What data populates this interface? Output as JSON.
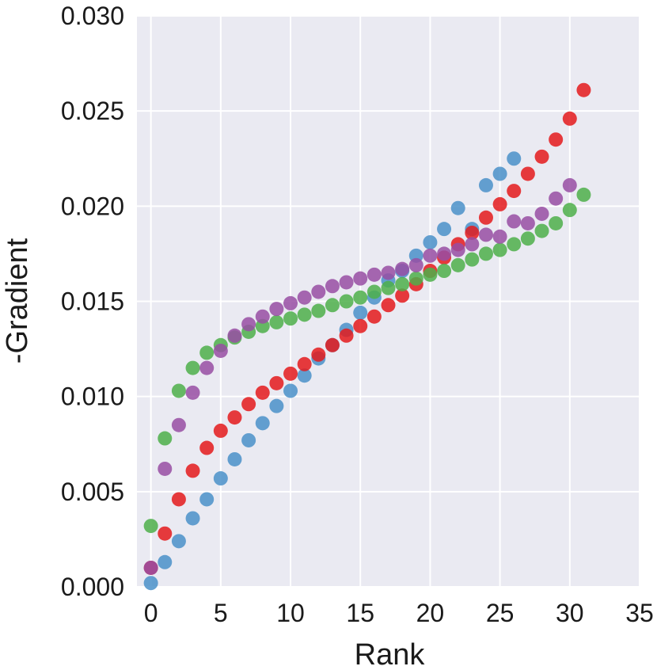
{
  "chart_data": {
    "type": "scatter",
    "title": "",
    "xlabel": "Rank",
    "ylabel": "-Gradient",
    "xlim": [
      -1,
      35
    ],
    "ylim": [
      0,
      0.03
    ],
    "xticks": [
      "0",
      "5",
      "10",
      "15",
      "20",
      "25",
      "30",
      "35"
    ],
    "yticks": [
      "0.000",
      "0.005",
      "0.010",
      "0.015",
      "0.020",
      "0.025",
      "0.030"
    ],
    "grid": true,
    "legend": "none",
    "background": "#eaeaf2",
    "series": [
      {
        "color": "#4a90c9",
        "x": [
          0,
          1,
          2,
          3,
          4,
          5,
          6,
          7,
          8,
          9,
          10,
          11,
          12,
          13,
          14,
          15,
          16,
          17,
          18,
          19,
          20,
          21,
          22,
          23,
          24,
          25,
          26
        ],
        "y": [
          0.0002,
          0.0013,
          0.0024,
          0.0036,
          0.0046,
          0.0057,
          0.0067,
          0.0077,
          0.0086,
          0.0095,
          0.0103,
          0.0111,
          0.012,
          0.0127,
          0.0135,
          0.0144,
          0.0152,
          0.0161,
          0.0166,
          0.0174,
          0.0181,
          0.0188,
          0.0199,
          0.0188,
          0.0211,
          0.0217,
          0.0225
        ]
      },
      {
        "color": "#e41a1c",
        "x": [
          0,
          1,
          2,
          3,
          4,
          5,
          6,
          7,
          8,
          9,
          10,
          11,
          12,
          13,
          14,
          15,
          16,
          17,
          18,
          19,
          20,
          21,
          22,
          23,
          24,
          25,
          26,
          27,
          28,
          29,
          30,
          31
        ],
        "y": [
          0.001,
          0.0028,
          0.0046,
          0.0061,
          0.0073,
          0.0082,
          0.0089,
          0.0096,
          0.0102,
          0.0107,
          0.0112,
          0.0117,
          0.0122,
          0.0127,
          0.0132,
          0.0137,
          0.0142,
          0.0148,
          0.0153,
          0.0159,
          0.0166,
          0.0173,
          0.018,
          0.0186,
          0.0194,
          0.0201,
          0.0208,
          0.0217,
          0.0226,
          0.0235,
          0.0246,
          0.0261
        ]
      },
      {
        "color": "#4daf4a",
        "x": [
          0,
          1,
          2,
          3,
          4,
          5,
          6,
          7,
          8,
          9,
          10,
          11,
          12,
          13,
          14,
          15,
          16,
          17,
          18,
          19,
          20,
          21,
          22,
          23,
          24,
          25,
          26,
          27,
          28,
          29,
          30,
          31
        ],
        "y": [
          0.0032,
          0.0078,
          0.0103,
          0.0115,
          0.0123,
          0.0127,
          0.0131,
          0.0134,
          0.0137,
          0.0139,
          0.0141,
          0.0143,
          0.0145,
          0.0148,
          0.015,
          0.0152,
          0.0155,
          0.0157,
          0.0159,
          0.0162,
          0.0164,
          0.0166,
          0.0169,
          0.0172,
          0.0175,
          0.0177,
          0.018,
          0.0183,
          0.0187,
          0.0191,
          0.0198,
          0.0206
        ]
      },
      {
        "color": "#984ea3",
        "x": [
          0,
          1,
          2,
          3,
          4,
          5,
          6,
          7,
          8,
          9,
          10,
          11,
          12,
          13,
          14,
          15,
          16,
          17,
          18,
          19,
          20,
          21,
          22,
          23,
          24,
          25,
          26,
          27,
          28,
          29,
          30
        ],
        "y": [
          0.001,
          0.0062,
          0.0085,
          0.0102,
          0.0115,
          0.0124,
          0.0132,
          0.0138,
          0.0142,
          0.0146,
          0.0149,
          0.0152,
          0.0155,
          0.0158,
          0.016,
          0.0162,
          0.0164,
          0.0165,
          0.0167,
          0.0169,
          0.0174,
          0.0175,
          0.0177,
          0.018,
          0.0185,
          0.0184,
          0.0192,
          0.0191,
          0.0196,
          0.0204,
          0.0211
        ]
      }
    ]
  }
}
